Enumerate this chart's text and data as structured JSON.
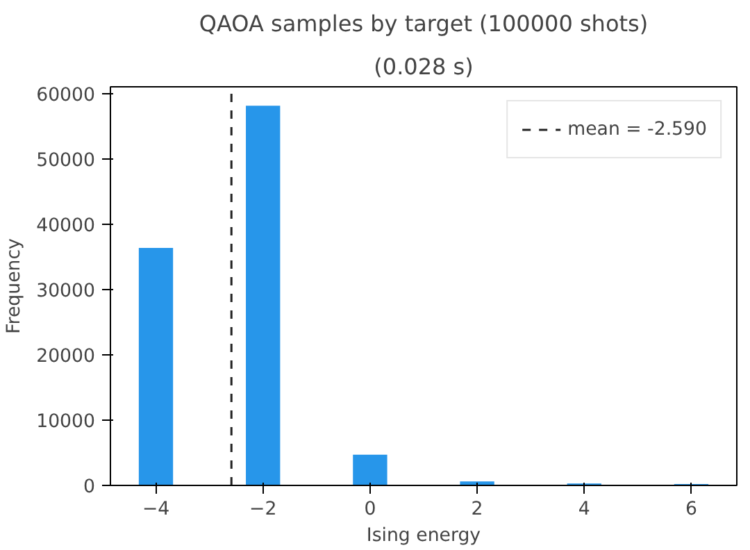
{
  "chart_data": {
    "type": "bar",
    "title": "QAOA samples by target (100000 shots)",
    "subtitle": "(0.028 s)",
    "xlabel": "Ising energy",
    "ylabel": "Frequency",
    "x": [
      -4,
      -2,
      0,
      2,
      4,
      6
    ],
    "values": [
      36400,
      58200,
      4700,
      600,
      300,
      200
    ],
    "color": "#2796ea",
    "xlim": [
      -4.85,
      6.85
    ],
    "xticks": [
      {
        "value": -4,
        "label": "−4"
      },
      {
        "value": -2,
        "label": "−2"
      },
      0,
      2,
      4,
      6
    ],
    "ylim": [
      0,
      61100
    ],
    "yticks": [
      0,
      10000,
      20000,
      30000,
      40000,
      50000,
      60000
    ],
    "ref_lines": [
      {
        "axis": "x",
        "value": -2.59,
        "label": "mean = -2.590",
        "color": "#222222",
        "line_style": "dashed"
      }
    ],
    "grid": false,
    "legend": "top right"
  }
}
